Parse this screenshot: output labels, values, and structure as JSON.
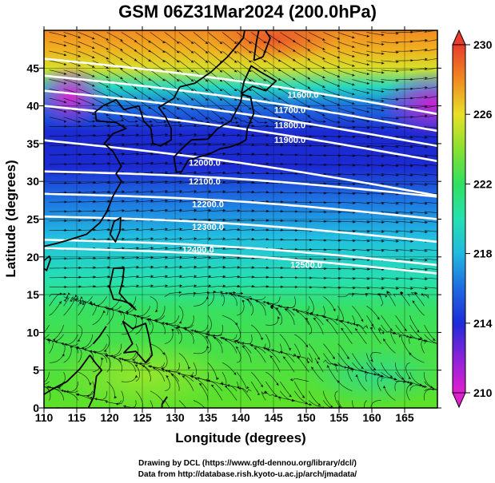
{
  "title": "GSM 06Z31Mar2024 (200.0hPa)",
  "x_axis": {
    "label": "Longitude (degrees)",
    "ticks": [
      110,
      115,
      120,
      125,
      130,
      135,
      140,
      145,
      150,
      155,
      160,
      165
    ],
    "range": [
      110,
      170
    ]
  },
  "y_axis": {
    "label": "Latitude  (degrees)",
    "ticks": [
      0,
      5,
      10,
      15,
      20,
      25,
      30,
      35,
      40,
      45
    ],
    "range": [
      0,
      50
    ]
  },
  "colorbar": {
    "ticks": [
      210,
      214,
      218,
      222,
      226,
      230
    ],
    "range": [
      210,
      230
    ],
    "colors": [
      "#e020d0",
      "#6a20d8",
      "#1d2cd8",
      "#1e6ae0",
      "#22c0e0",
      "#25e0b0",
      "#30e060",
      "#60e030",
      "#b8e828",
      "#f0d020",
      "#f08a20",
      "#e83c2c"
    ]
  },
  "contours": [
    {
      "label": "11600.0",
      "lon": 149.5,
      "lat": 41.5
    },
    {
      "label": "11700.0",
      "lon": 147.5,
      "lat": 39.5
    },
    {
      "label": "11800.0",
      "lon": 147.5,
      "lat": 37.5
    },
    {
      "label": "11900.0",
      "lon": 147.5,
      "lat": 35.5
    },
    {
      "label": "12000.0",
      "lon": 134.5,
      "lat": 32.5
    },
    {
      "label": "12100.0",
      "lon": 134.5,
      "lat": 30.0
    },
    {
      "label": "12200.0",
      "lon": 135.0,
      "lat": 27.0
    },
    {
      "label": "12300.0",
      "lon": 135.0,
      "lat": 24.0
    },
    {
      "label": "12400.0",
      "lon": 133.5,
      "lat": 21.0
    },
    {
      "label": "12500.0",
      "lon": 150.0,
      "lat": 19.0
    }
  ],
  "credits": {
    "line1": "Drawing by DCL (https://www.gfd-dennou.org/library/dcl/)",
    "line2": "Data from http://database.rish.kyoto-u.ac.jp/arch/jmadata/"
  }
}
